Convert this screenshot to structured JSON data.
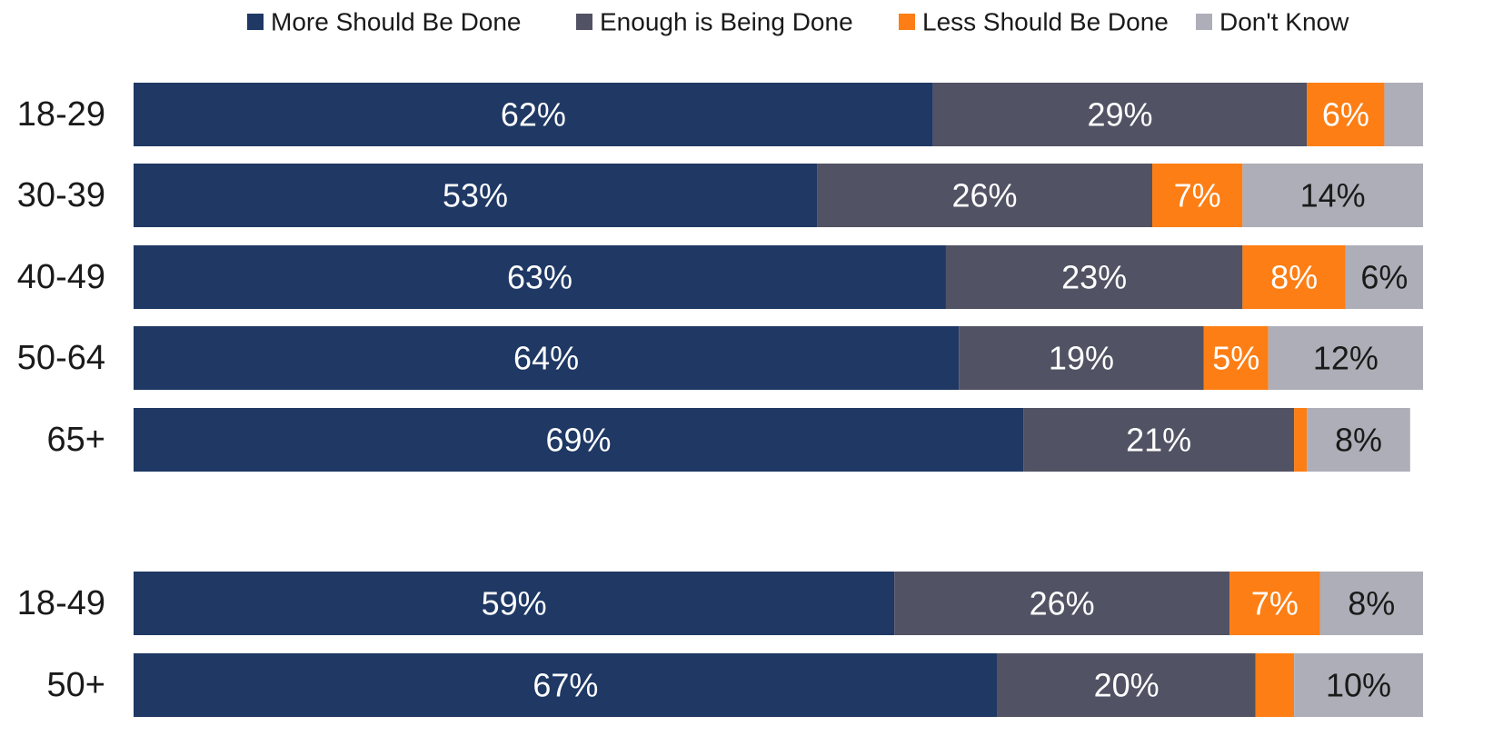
{
  "chart_data": {
    "type": "bar",
    "orientation": "horizontal",
    "stacked": true,
    "grid": false,
    "legend_position": "top",
    "xlim": [
      0,
      100
    ],
    "categories": [
      "18-29",
      "30-39",
      "40-49",
      "50-64",
      "65+",
      "18-49",
      "50+"
    ],
    "groups": [
      [
        "18-29",
        "30-39",
        "40-49",
        "50-64",
        "65+"
      ],
      [
        "18-49",
        "50+"
      ]
    ],
    "series": [
      {
        "name": "More Should Be Done",
        "color": "#1f3864",
        "label_color": "#ffffff",
        "values": [
          62,
          53,
          63,
          64,
          69,
          59,
          67
        ],
        "labels": [
          "62%",
          "53%",
          "63%",
          "64%",
          "69%",
          "59%",
          "67%"
        ]
      },
      {
        "name": "Enough is Being Done",
        "color": "#515263",
        "label_color": "#ffffff",
        "values": [
          29,
          26,
          23,
          19,
          21,
          26,
          20
        ],
        "labels": [
          "29%",
          "26%",
          "23%",
          "19%",
          "21%",
          "26%",
          "20%"
        ]
      },
      {
        "name": "Less Should Be Done",
        "color": "#fd7e14",
        "label_color": "#ffffff",
        "values": [
          6,
          7,
          8,
          5,
          1,
          7,
          3
        ],
        "labels": [
          "6%",
          "7%",
          "8%",
          "5%",
          "",
          "7%",
          ""
        ]
      },
      {
        "name": "Don't Know",
        "color": "#aeaeb8",
        "label_color": "#1a1a1a",
        "values": [
          3,
          14,
          6,
          12,
          8,
          8,
          10
        ],
        "labels": [
          "",
          "14%",
          "6%",
          "12%",
          "8%",
          "8%",
          "10%"
        ]
      }
    ]
  }
}
